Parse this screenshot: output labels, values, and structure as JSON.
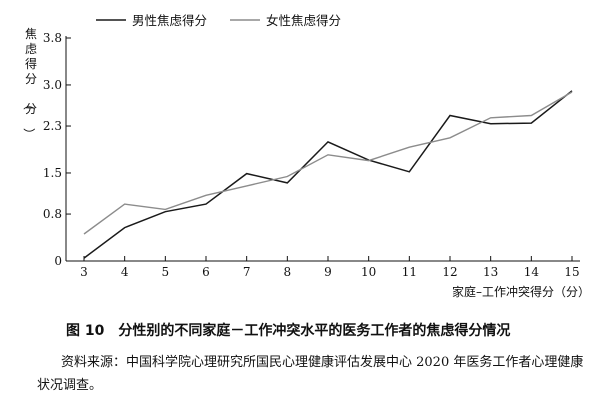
{
  "chart_data": {
    "type": "line",
    "title": "",
    "xlabel": "家庭–工作冲突得分（分）",
    "ylabel": "焦虑得分（分）",
    "x": [
      3,
      4,
      5,
      6,
      7,
      8,
      9,
      10,
      11,
      12,
      13,
      14,
      15
    ],
    "xlim": [
      3,
      15
    ],
    "yticks": [
      "0",
      "0.8",
      "1.5",
      "2.3",
      "3.0",
      "3.8"
    ],
    "ylim": [
      0,
      3.8
    ],
    "grid": false,
    "legend_position": "top-left",
    "series": [
      {
        "name": "男性焦虑得分",
        "color": "#1a1a1a",
        "values": [
          0.05,
          0.57,
          0.84,
          0.97,
          1.49,
          1.33,
          2.03,
          1.72,
          1.52,
          2.48,
          2.34,
          2.35,
          2.9
        ]
      },
      {
        "name": "女性焦虑得分",
        "color": "#8c8c8c",
        "values": [
          0.46,
          0.97,
          0.88,
          1.12,
          1.28,
          1.44,
          1.81,
          1.71,
          1.94,
          2.1,
          2.44,
          2.48,
          2.88
        ]
      }
    ]
  },
  "caption": {
    "number": "图 10",
    "text": "分性别的不同家庭－工作冲突水平的医务工作者的焦虑得分情况"
  },
  "source": "资料来源：中国科学院心理研究所国民心理健康评估发展中心 2020 年医务工作者心理健康状况调查。"
}
